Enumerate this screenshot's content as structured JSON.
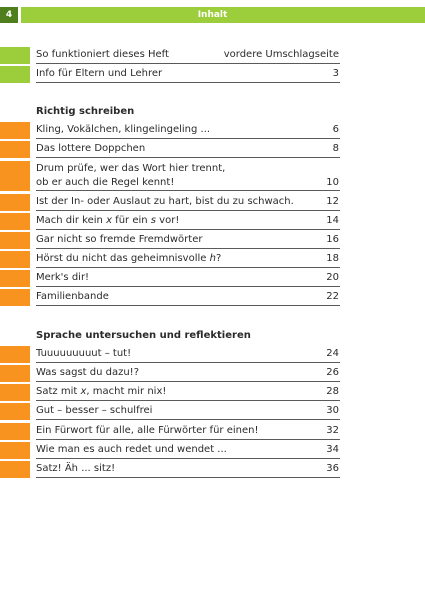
{
  "header": {
    "page_number": "4",
    "title": "Inhalt"
  },
  "intro": [
    {
      "text": "So funktioniert dieses Heft",
      "page": "vordere Umschlagseite"
    },
    {
      "text": "Info für Eltern und Lehrer",
      "page": "3"
    }
  ],
  "sections": [
    {
      "title": "Richtig schreiben",
      "items": [
        {
          "text": "Kling, Vokälchen, klingelingeling ...",
          "page": "6"
        },
        {
          "text": "Das lottere Doppchen",
          "page": "8"
        },
        {
          "line1": "Drum prüfe, wer das Wort hier trennt,",
          "line2": "ob er auch die Regel kennt!",
          "page": "10"
        },
        {
          "text": "Ist der In- oder Auslaut zu hart, bist du zu schwach.",
          "page": "12"
        },
        {
          "text_a": "Mach dir kein ",
          "italic_a": "x",
          "text_b": " für ein ",
          "italic_b": "s",
          "text_c": " vor!",
          "page": "14"
        },
        {
          "text": "Gar nicht so fremde Fremdwörter",
          "page": "16"
        },
        {
          "text_a": "Hörst du nicht das geheimnisvolle ",
          "italic_a": "h",
          "text_b": "?",
          "page": "18"
        },
        {
          "text": "Merk's dir!",
          "page": "20"
        },
        {
          "text": "Familienbande",
          "page": "22"
        }
      ]
    },
    {
      "title": "Sprache untersuchen und reflektieren",
      "items": [
        {
          "text": "Tuuuuuuuuut – tut!",
          "page": "24"
        },
        {
          "text": "Was sagst du dazu!?",
          "page": "26"
        },
        {
          "text_a": "Satz mit ",
          "italic_a": "x",
          "text_b": ", macht mir nix!",
          "page": "28"
        },
        {
          "text": "Gut – besser – schulfrei",
          "page": "30"
        },
        {
          "text": "Ein Fürwort für alle, alle Fürwörter für einen!",
          "page": "32"
        },
        {
          "text": "Wie man es auch redet und wendet ...",
          "page": "34"
        },
        {
          "text": "Satz! Äh ... sitz!",
          "page": "36"
        }
      ]
    }
  ],
  "colors": {
    "green": "#9ccd3a",
    "dark_green": "#4e7f1c",
    "orange": "#f7931e"
  }
}
